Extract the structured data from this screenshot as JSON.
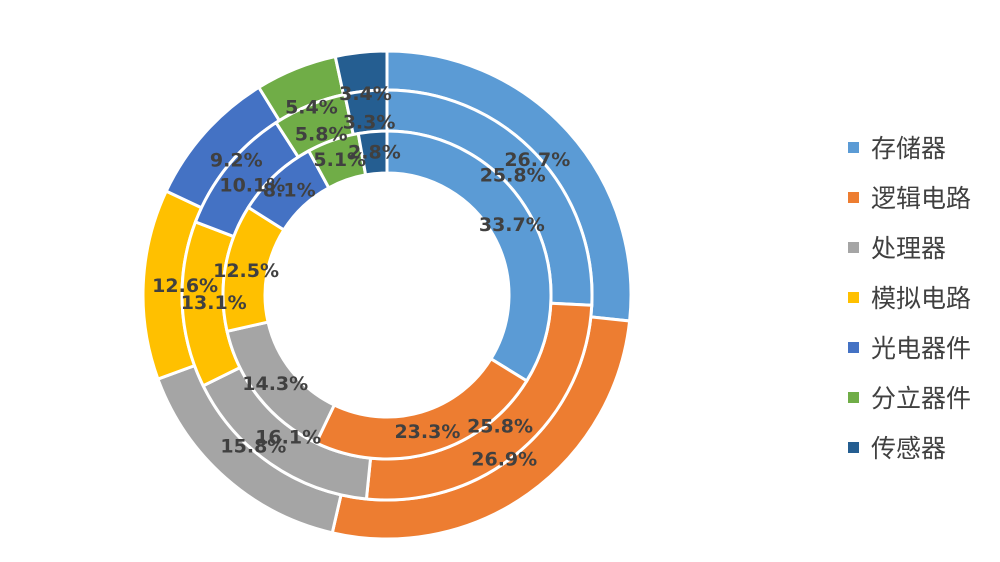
{
  "chart_data": {
    "type": "pie",
    "variant": "doughnut",
    "categories": [
      "存储器",
      "逻辑电路",
      "处理器",
      "模拟电路",
      "光电器件",
      "分立器件",
      "传感器"
    ],
    "colors": [
      "#5B9BD5",
      "#ED7D31",
      "#A5A5A5",
      "#FFC000",
      "#4472C4",
      "#70AD47",
      "#255E91"
    ],
    "rings": [
      {
        "position": "outer",
        "values": [
          26.7,
          26.9,
          15.8,
          12.6,
          9.2,
          5.4,
          3.4
        ],
        "labels": [
          "26.7%",
          "26.9%",
          "15.8%",
          "12.6%",
          "9.2%",
          "5.4%",
          "3.4%"
        ]
      },
      {
        "position": "middle",
        "values": [
          25.8,
          25.8,
          16.1,
          13.1,
          10.1,
          5.8,
          3.3
        ],
        "labels": [
          "25.8%",
          "25.8%",
          "16.1%",
          "13.1%",
          "10.1%",
          "5.8%",
          "3.3%"
        ]
      },
      {
        "position": "inner",
        "values": [
          33.7,
          23.3,
          14.3,
          12.5,
          8.1,
          5.1,
          2.8
        ],
        "labels": [
          "33.7%",
          "23.3%",
          "14.3%",
          "12.5%",
          "8.1%",
          "5.1%",
          "2.8%"
        ]
      }
    ],
    "legend_position": "right",
    "title": ""
  }
}
